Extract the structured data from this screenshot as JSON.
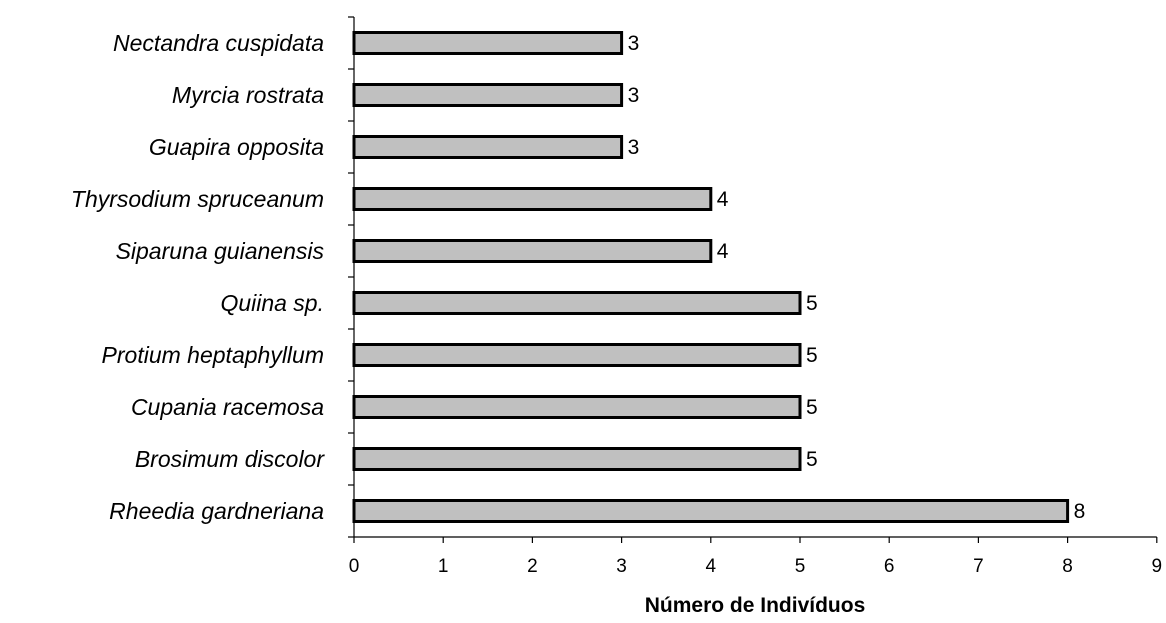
{
  "chart_data": {
    "type": "bar",
    "orientation": "horizontal",
    "categories": [
      "Nectandra cuspidata",
      "Myrcia rostrata",
      "Guapira opposita",
      "Thyrsodium spruceanum",
      "Siparuna guianensis",
      "Quiina sp.",
      "Protium heptaphyllum",
      "Cupania racemosa",
      "Brosimum discolor",
      "Rheedia gardneriana"
    ],
    "values": [
      3,
      3,
      3,
      4,
      4,
      5,
      5,
      5,
      5,
      8
    ],
    "data_labels": [
      "3",
      "3",
      "3",
      "4",
      "4",
      "5",
      "5",
      "5",
      "5",
      "8"
    ],
    "xlabel": "Número de Indivíduos",
    "xlim": [
      0,
      9
    ],
    "xticks": [
      "0",
      "1",
      "2",
      "3",
      "4",
      "5",
      "6",
      "7",
      "8",
      "9"
    ],
    "bar_color": "#c0c0c0",
    "bar_edge_color": "#000000",
    "grid": false,
    "legend": "none"
  }
}
